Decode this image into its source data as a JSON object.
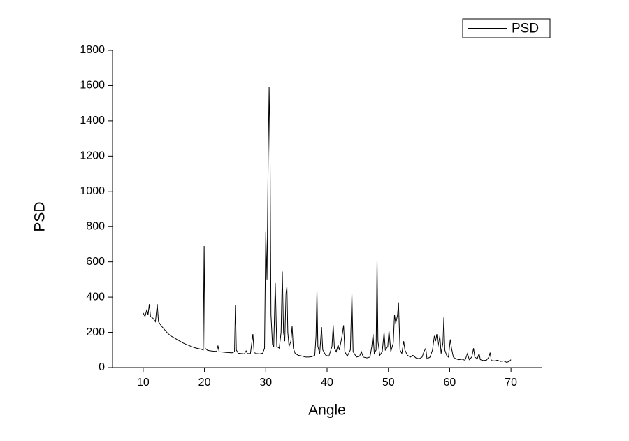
{
  "chart_data": {
    "type": "line",
    "xlabel": "Angle",
    "ylabel": "PSD",
    "legend": "top-right",
    "xlim": [
      5,
      75
    ],
    "ylim": [
      0,
      1800
    ],
    "xticks": [
      10,
      20,
      30,
      40,
      50,
      60,
      70
    ],
    "yticks": [
      0,
      200,
      400,
      600,
      800,
      1000,
      1200,
      1400,
      1600,
      1800
    ],
    "x": [
      10.0,
      10.3,
      10.6,
      10.8,
      11.0,
      11.2,
      11.6,
      12.0,
      12.3,
      12.5,
      13,
      13.5,
      14,
      14.5,
      15,
      15.5,
      16,
      16.5,
      17,
      17.5,
      18,
      18.5,
      19,
      19.5,
      19.8,
      19.95,
      20.1,
      20.5,
      21,
      21.5,
      22,
      22.2,
      22.4,
      23,
      23.5,
      24,
      24.5,
      24.9,
      25.05,
      25.2,
      25.5,
      26,
      26.5,
      26.8,
      27,
      27.5,
      27.9,
      28.1,
      28.5,
      29,
      29.5,
      29.8,
      30.0,
      30.2,
      30.4,
      30.55,
      30.7,
      30.85,
      31.1,
      31.3,
      31.55,
      31.8,
      32.2,
      32.5,
      32.7,
      32.9,
      33.1,
      33.3,
      33.45,
      33.6,
      33.8,
      34.1,
      34.3,
      34.5,
      34.8,
      35.3,
      36,
      36.5,
      37,
      37.5,
      38,
      38.2,
      38.35,
      38.5,
      38.8,
      39.1,
      39.3,
      39.8,
      40.3,
      40.8,
      41.0,
      41.2,
      41.5,
      41.8,
      42.0,
      42.4,
      42.7,
      42.9,
      43.3,
      43.8,
      44.05,
      44.25,
      44.8,
      45.3,
      45.6,
      45.9,
      46.5,
      47,
      47.3,
      47.5,
      47.7,
      48.0,
      48.15,
      48.3,
      48.6,
      49.0,
      49.3,
      49.5,
      49.9,
      50.1,
      50.4,
      50.8,
      51.0,
      51.2,
      51.5,
      51.65,
      51.9,
      52.2,
      52.5,
      52.7,
      53.1,
      53.6,
      54,
      54.5,
      55,
      55.5,
      55.8,
      56.1,
      56.3,
      56.8,
      57.2,
      57.5,
      57.7,
      57.9,
      58.1,
      58.4,
      58.6,
      58.9,
      59.05,
      59.2,
      59.5,
      59.8,
      60.1,
      60.3,
      60.6,
      61,
      61.5,
      62,
      62.5,
      62.9,
      63.2,
      63.6,
      63.9,
      64.1,
      64.5,
      64.8,
      65,
      65.5,
      66,
      66.4,
      66.6,
      66.8,
      67.3,
      67.8,
      68.3,
      68.8,
      69.3,
      69.7,
      70.0
    ],
    "series": [
      {
        "name": "PSD",
        "color": "#000000",
        "values": [
          310,
          290,
          330,
          300,
          360,
          290,
          280,
          260,
          360,
          260,
          235,
          215,
          195,
          180,
          170,
          160,
          150,
          140,
          132,
          125,
          118,
          112,
          108,
          104,
          100,
          690,
          110,
          98,
          95,
          93,
          92,
          125,
          90,
          88,
          86,
          85,
          84,
          90,
          355,
          100,
          82,
          80,
          78,
          95,
          80,
          80,
          190,
          85,
          80,
          78,
          82,
          110,
          770,
          500,
          1200,
          1590,
          1220,
          300,
          130,
          120,
          480,
          120,
          110,
          200,
          545,
          200,
          150,
          420,
          460,
          200,
          120,
          150,
          235,
          110,
          80,
          70,
          65,
          60,
          60,
          62,
          70,
          180,
          435,
          120,
          80,
          230,
          100,
          70,
          65,
          120,
          240,
          110,
          90,
          130,
          100,
          170,
          240,
          90,
          65,
          100,
          420,
          90,
          60,
          65,
          90,
          60,
          55,
          60,
          120,
          190,
          80,
          100,
          610,
          150,
          70,
          90,
          200,
          100,
          120,
          210,
          90,
          140,
          300,
          250,
          300,
          370,
          100,
          80,
          150,
          100,
          70,
          60,
          70,
          55,
          50,
          60,
          90,
          110,
          50,
          60,
          100,
          180,
          150,
          190,
          120,
          180,
          80,
          140,
          285,
          100,
          70,
          60,
          160,
          110,
          60,
          50,
          45,
          48,
          42,
          80,
          45,
          60,
          110,
          60,
          50,
          80,
          45,
          40,
          42,
          60,
          85,
          40,
          38,
          42,
          35,
          38,
          30,
          35,
          45
        ]
      }
    ]
  }
}
